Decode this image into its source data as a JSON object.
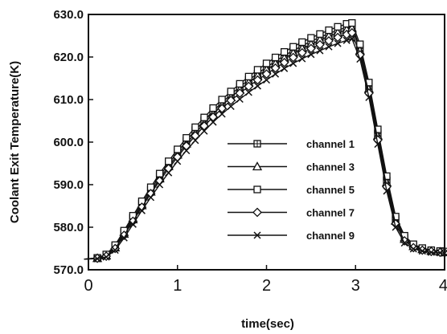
{
  "chart_data": {
    "type": "line",
    "title": "",
    "xlabel": "time(sec)",
    "ylabel": "Coolant Exit Temperature(K)",
    "xlim": [
      0,
      4
    ],
    "ylim": [
      570,
      630
    ],
    "x_ticks": [
      "0",
      "1",
      "2",
      "3",
      "4"
    ],
    "y_ticks": [
      "570.0",
      "580.0",
      "590.0",
      "600.0",
      "610.0",
      "620.0",
      "630.0"
    ],
    "grid": false,
    "legend_position": "right-center",
    "series": [
      {
        "name": "channel 1",
        "marker": "square-cross",
        "x": [
          -0.05,
          0.1,
          0.2,
          0.3,
          0.4,
          0.5,
          0.6,
          0.7,
          0.8,
          0.9,
          1.0,
          1.1,
          1.2,
          1.3,
          1.4,
          1.5,
          1.6,
          1.7,
          1.8,
          1.9,
          2.0,
          2.1,
          2.2,
          2.3,
          2.4,
          2.5,
          2.6,
          2.7,
          2.8,
          2.9,
          2.96,
          3.05,
          3.15,
          3.25,
          3.35,
          3.45,
          3.55,
          3.65,
          3.75,
          3.85,
          3.95,
          4.0
        ],
        "y": [
          572.5,
          572.8,
          573.5,
          575.5,
          578.8,
          582.2,
          585.6,
          588.8,
          592.0,
          594.9,
          597.6,
          600.3,
          602.8,
          605.1,
          607.3,
          609.3,
          611.2,
          613.0,
          614.6,
          616.1,
          617.6,
          619.0,
          620.3,
          621.5,
          622.6,
          623.7,
          624.6,
          625.5,
          626.3,
          627.0,
          627.4,
          622.0,
          613.0,
          602.0,
          591.0,
          582.0,
          577.5,
          575.7,
          574.9,
          574.5,
          574.3,
          574.2
        ]
      },
      {
        "name": "channel 3",
        "marker": "triangle",
        "x": [
          -0.05,
          0.1,
          0.2,
          0.3,
          0.4,
          0.5,
          0.6,
          0.7,
          0.8,
          0.9,
          1.0,
          1.1,
          1.2,
          1.3,
          1.4,
          1.5,
          1.6,
          1.7,
          1.8,
          1.9,
          2.0,
          2.1,
          2.2,
          2.3,
          2.4,
          2.5,
          2.6,
          2.7,
          2.8,
          2.9,
          2.96,
          3.05,
          3.15,
          3.25,
          3.35,
          3.45,
          3.55,
          3.65,
          3.75,
          3.85,
          3.95,
          4.0
        ],
        "y": [
          572.5,
          572.7,
          573.3,
          575.2,
          578.4,
          581.8,
          585.1,
          588.3,
          591.4,
          594.3,
          597.0,
          599.6,
          602.1,
          604.4,
          606.6,
          608.6,
          610.5,
          612.3,
          614.0,
          615.6,
          617.0,
          618.4,
          619.7,
          620.9,
          622.0,
          623.0,
          624.0,
          624.9,
          625.7,
          626.4,
          626.8,
          621.5,
          612.5,
          601.5,
          590.5,
          581.5,
          577.2,
          575.5,
          574.8,
          574.4,
          574.2,
          574.1
        ]
      },
      {
        "name": "channel 5",
        "marker": "square",
        "x": [
          -0.05,
          0.1,
          0.2,
          0.3,
          0.4,
          0.5,
          0.6,
          0.7,
          0.8,
          0.9,
          1.0,
          1.1,
          1.2,
          1.3,
          1.4,
          1.5,
          1.6,
          1.7,
          1.8,
          1.9,
          2.0,
          2.1,
          2.2,
          2.3,
          2.4,
          2.5,
          2.6,
          2.7,
          2.8,
          2.9,
          2.96,
          3.05,
          3.15,
          3.25,
          3.35,
          3.45,
          3.55,
          3.65,
          3.75,
          3.85,
          3.95,
          4.0
        ],
        "y": [
          572.5,
          572.8,
          573.6,
          575.8,
          579.2,
          582.7,
          586.1,
          589.4,
          592.6,
          595.5,
          598.3,
          601.0,
          603.5,
          605.8,
          608.0,
          610.0,
          611.9,
          613.7,
          615.4,
          617.0,
          618.5,
          619.9,
          621.2,
          622.4,
          623.5,
          624.5,
          625.4,
          626.3,
          627.1,
          627.8,
          628.0,
          623.0,
          614.0,
          603.0,
          592.0,
          582.5,
          578.0,
          576.0,
          575.1,
          574.6,
          574.4,
          574.3
        ]
      },
      {
        "name": "channel 7",
        "marker": "diamond",
        "x": [
          -0.05,
          0.1,
          0.2,
          0.3,
          0.4,
          0.5,
          0.6,
          0.7,
          0.8,
          0.9,
          1.0,
          1.1,
          1.2,
          1.3,
          1.4,
          1.5,
          1.6,
          1.7,
          1.8,
          1.9,
          2.0,
          2.1,
          2.2,
          2.3,
          2.4,
          2.5,
          2.6,
          2.7,
          2.8,
          2.9,
          2.96,
          3.05,
          3.15,
          3.25,
          3.35,
          3.45,
          3.55,
          3.65,
          3.75,
          3.85,
          3.95,
          4.0
        ],
        "y": [
          572.5,
          572.7,
          573.2,
          575.0,
          578.1,
          581.4,
          584.7,
          587.9,
          590.9,
          593.8,
          596.5,
          599.1,
          601.5,
          603.8,
          605.9,
          607.9,
          609.8,
          611.5,
          613.1,
          614.6,
          616.0,
          617.4,
          618.7,
          619.9,
          621.0,
          622.0,
          622.9,
          623.8,
          624.6,
          625.3,
          625.7,
          620.5,
          611.5,
          600.5,
          589.5,
          580.8,
          576.8,
          575.2,
          574.6,
          574.3,
          574.1,
          574.0
        ]
      },
      {
        "name": "channel 9",
        "marker": "x",
        "x": [
          -0.05,
          0.1,
          0.2,
          0.3,
          0.4,
          0.5,
          0.6,
          0.7,
          0.8,
          0.9,
          1.0,
          1.1,
          1.2,
          1.3,
          1.4,
          1.5,
          1.6,
          1.7,
          1.8,
          1.9,
          2.0,
          2.1,
          2.2,
          2.3,
          2.4,
          2.5,
          2.6,
          2.7,
          2.8,
          2.9,
          2.96,
          3.05,
          3.15,
          3.25,
          3.35,
          3.45,
          3.55,
          3.65,
          3.75,
          3.85,
          3.95,
          4.0
        ],
        "y": [
          572.5,
          572.6,
          573.0,
          574.6,
          577.5,
          580.7,
          583.9,
          587.0,
          590.0,
          592.8,
          595.5,
          598.0,
          600.4,
          602.6,
          604.7,
          606.6,
          608.4,
          610.1,
          611.7,
          613.2,
          614.6,
          616.0,
          617.3,
          618.5,
          619.6,
          620.6,
          621.5,
          622.4,
          623.2,
          623.9,
          624.3,
          619.5,
          610.5,
          599.5,
          588.5,
          580.0,
          576.3,
          574.9,
          574.4,
          574.1,
          574.0,
          573.9
        ]
      }
    ]
  }
}
